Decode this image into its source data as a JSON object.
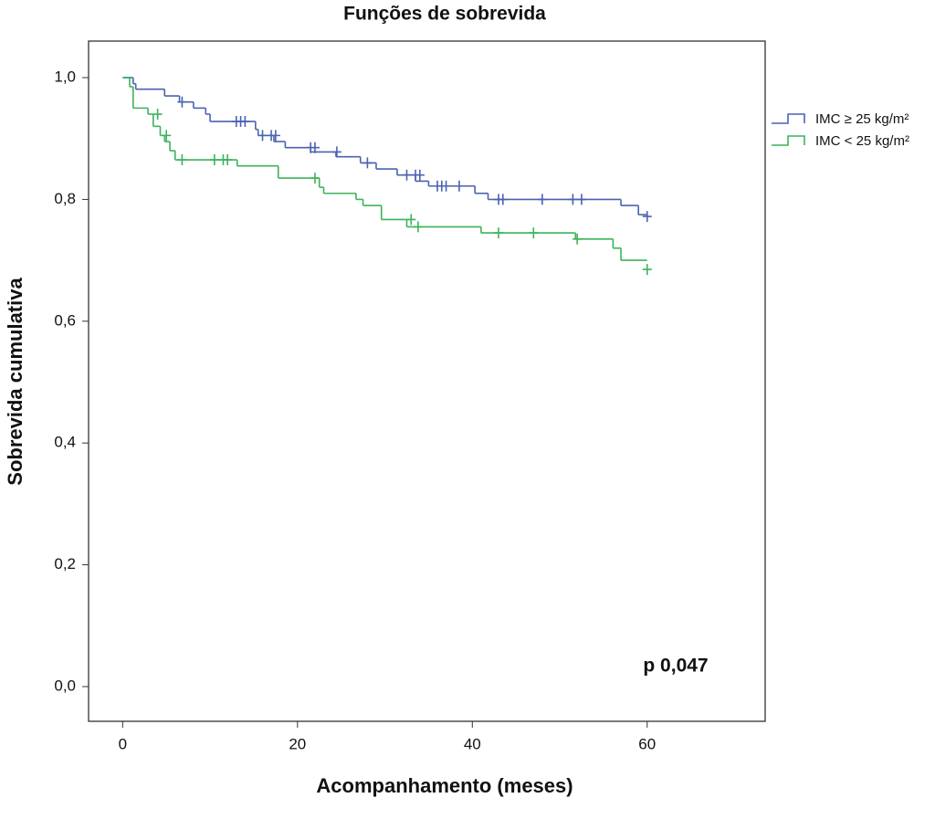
{
  "chart_data": {
    "type": "step",
    "title": "Funções de sobrevida",
    "x_label": "Acompanhamento (meses)",
    "y_label": "Sobrevida cumulativa",
    "annotation": "p 0,047",
    "xlim": [
      -3.9,
      73.5
    ],
    "ylim": [
      -0.057,
      1.06
    ],
    "xticks": [
      0,
      20,
      40,
      60
    ],
    "yticks": [
      {
        "value": 0,
        "label": "0,0"
      },
      {
        "value": 0.2,
        "label": "0,2"
      },
      {
        "value": 0.4,
        "label": "0,4"
      },
      {
        "value": 0.6,
        "label": "0,6"
      },
      {
        "value": 0.8,
        "label": "0,8"
      },
      {
        "value": 1,
        "label": "1,0"
      }
    ],
    "series": [
      {
        "name": "IMC ≥ 25 kg/m²",
        "color": "#4a62b2",
        "x": [
          0,
          1.2,
          1.5,
          4.8,
          6.5,
          8.1,
          9.5,
          10,
          15.2,
          15.5,
          17.3,
          18.6,
          21.5,
          24.4,
          27.2,
          29,
          31.4,
          33.5,
          35,
          40.3,
          41.8,
          57,
          59,
          60
        ],
        "values": [
          1,
          0.99,
          0.981,
          0.97,
          0.96,
          0.95,
          0.94,
          0.928,
          0.915,
          0.905,
          0.895,
          0.885,
          0.878,
          0.87,
          0.86,
          0.85,
          0.84,
          0.83,
          0.822,
          0.81,
          0.8,
          0.79,
          0.775,
          0.775
        ],
        "censored_x": [
          6.8,
          13,
          13.5,
          14,
          16,
          17,
          17.5,
          21.5,
          22,
          24.5,
          28,
          32.5,
          33.5,
          34,
          36,
          36.5,
          37,
          38.5,
          43,
          43.5,
          48,
          51.5,
          52.5,
          60
        ],
        "censored_values": [
          0.96,
          0.928,
          0.928,
          0.928,
          0.905,
          0.905,
          0.905,
          0.885,
          0.885,
          0.878,
          0.86,
          0.84,
          0.84,
          0.84,
          0.822,
          0.822,
          0.822,
          0.822,
          0.8,
          0.8,
          0.8,
          0.8,
          0.8,
          0.772
        ]
      },
      {
        "name": "IMC < 25 kg/m²",
        "color": "#3cb35a",
        "x": [
          0,
          0.8,
          1.2,
          2.9,
          3.5,
          4.3,
          4.8,
          5.4,
          6,
          13.1,
          17.8,
          22.5,
          23,
          26.7,
          27.5,
          29.6,
          32.5,
          41,
          51.8,
          56.1,
          57,
          60
        ],
        "values": [
          1,
          0.985,
          0.95,
          0.94,
          0.92,
          0.905,
          0.895,
          0.88,
          0.865,
          0.855,
          0.835,
          0.82,
          0.81,
          0.8,
          0.79,
          0.767,
          0.755,
          0.745,
          0.735,
          0.72,
          0.7,
          0.7
        ],
        "censored_x": [
          4,
          5,
          6.8,
          10.5,
          11.5,
          12,
          22,
          33,
          33.8,
          43,
          47,
          52,
          60
        ],
        "censored_values": [
          0.94,
          0.905,
          0.865,
          0.865,
          0.865,
          0.865,
          0.835,
          0.767,
          0.755,
          0.745,
          0.745,
          0.735,
          0.685
        ]
      }
    ]
  }
}
